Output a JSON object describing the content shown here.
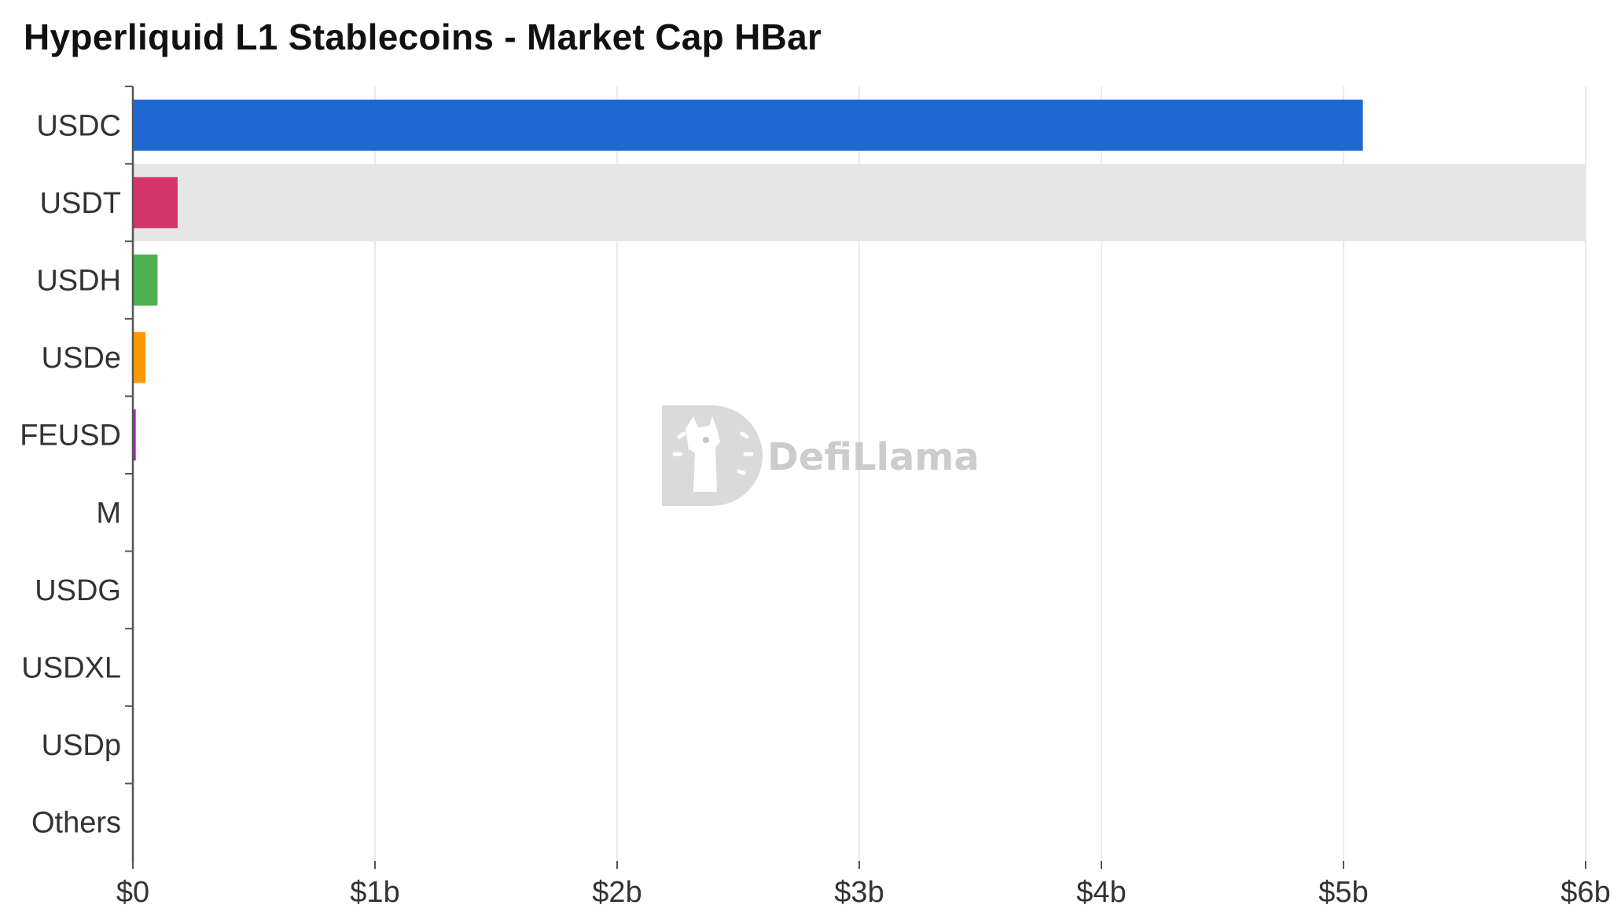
{
  "chart_data": {
    "type": "bar",
    "orientation": "horizontal",
    "title": "Hyperliquid L1 Stablecoins - Market Cap HBar",
    "xlabel": "",
    "ylabel": "",
    "categories": [
      "USDC",
      "USDT",
      "USDH",
      "USDe",
      "FEUSD",
      "M",
      "USDG",
      "USDXL",
      "USDp",
      "Others"
    ],
    "values": [
      5080000000,
      185000000,
      102000000,
      52000000,
      12000000,
      1500000,
      1000000,
      800000,
      500000,
      300000
    ],
    "colors": [
      "#1f68d1",
      "#d6356b",
      "#4cb050",
      "#ff9900",
      "#9b2fae",
      "#2a9d8f",
      "#795548",
      "#607d8b",
      "#00838f",
      "#9e9e9e"
    ],
    "xlim": [
      0,
      6000000000
    ],
    "x_ticks": [
      0,
      1000000000,
      2000000000,
      3000000000,
      4000000000,
      5000000000,
      6000000000
    ],
    "x_tick_labels": [
      "$0",
      "$1b",
      "$2b",
      "$3b",
      "$4b",
      "$5b",
      "$6b"
    ],
    "highlighted_category": "USDT",
    "grid": "vertical",
    "legend": "none"
  },
  "watermark": {
    "text": "DefiLlama",
    "icon": "llama-logo-icon"
  }
}
